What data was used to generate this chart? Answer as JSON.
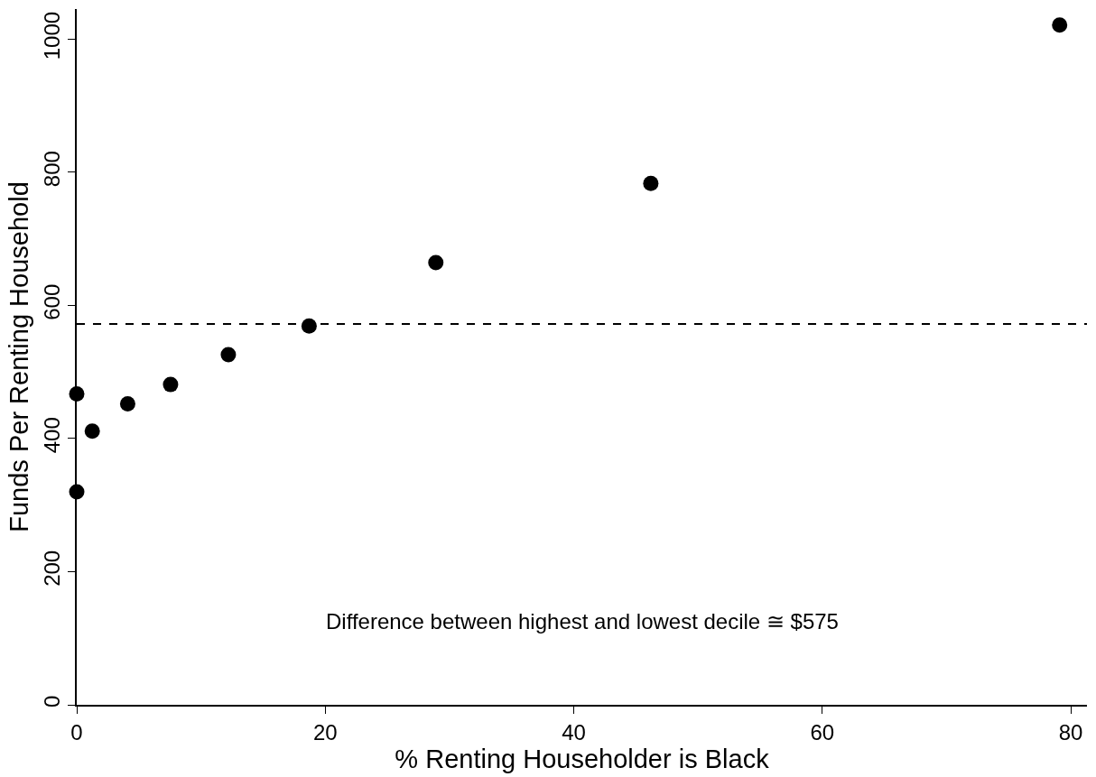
{
  "chart_data": {
    "type": "scatter",
    "xlabel": "% Renting Householder is Black",
    "ylabel": "Funds Per Renting Household",
    "x": [
      0,
      0,
      1.25,
      4.1,
      7.55,
      12.2,
      18.7,
      28.9,
      46.2,
      79.1
    ],
    "values": [
      467,
      320,
      411,
      452,
      481,
      526,
      569,
      664,
      783,
      1021
    ],
    "color": "#000000",
    "marker": "circle",
    "xlim": [
      0,
      81.3
    ],
    "ylim": [
      0,
      1045
    ],
    "xticks": [
      0,
      20,
      40,
      60,
      80
    ],
    "yticks": [
      0,
      200,
      400,
      600,
      800,
      1000
    ],
    "ref_lines": [
      {
        "axis": "y",
        "value": 572,
        "label": null,
        "color": "#000000",
        "line_style": "dashed"
      }
    ],
    "annotations": [
      "Difference between highest and lowest decile ≅ $575"
    ]
  }
}
